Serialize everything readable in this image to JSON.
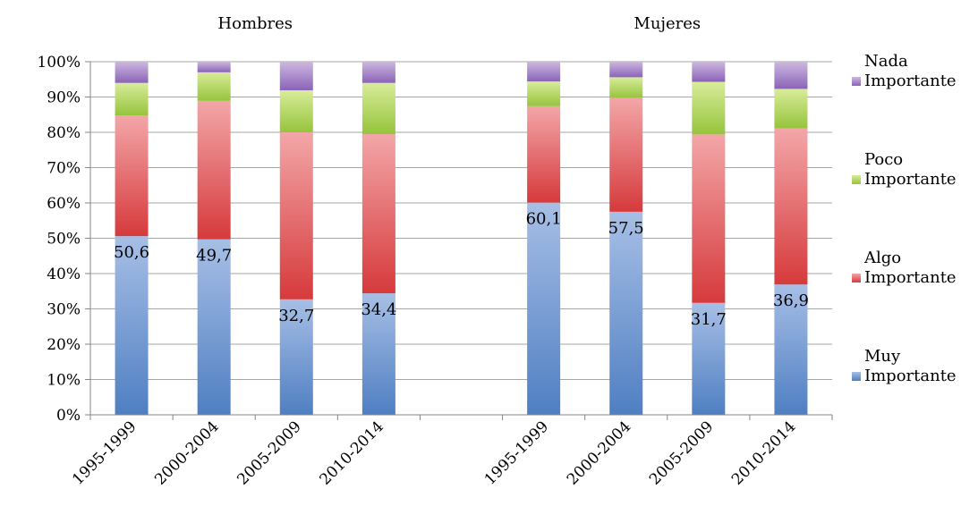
{
  "chart_data": {
    "type": "bar",
    "stacked": true,
    "percent_axis": true,
    "groups": [
      "Hombres",
      "Mujeres"
    ],
    "categories": [
      "1995-1999",
      "2000-2004",
      "2005-2009",
      "2010-2014",
      "",
      "1995-1999",
      "2000-2004",
      "2005-2009",
      "2010-2014"
    ],
    "category_group": [
      "Hombres",
      "Hombres",
      "Hombres",
      "Hombres",
      "",
      "Mujeres",
      "Mujeres",
      "Mujeres",
      "Mujeres"
    ],
    "series": [
      {
        "name": "Muy Importante",
        "legend_lines": [
          "Muy",
          "Importante"
        ],
        "color_top": "#a7bfe6",
        "color_bottom": "#4f7fc2",
        "values": [
          50.6,
          49.7,
          32.7,
          34.4,
          null,
          60.1,
          57.5,
          31.7,
          36.9
        ]
      },
      {
        "name": "Algo Importante",
        "legend_lines": [
          "Algo",
          "Importante"
        ],
        "color_top": "#f3a6a8",
        "color_bottom": "#d63a3c",
        "values": [
          34.2,
          39.2,
          47.3,
          45.1,
          null,
          27.3,
          32.2,
          47.7,
          44.2
        ]
      },
      {
        "name": "Poco Importante",
        "legend_lines": [
          "Poco",
          "Importante"
        ],
        "color_top": "#d8ec9a",
        "color_bottom": "#96c43c",
        "values": [
          9.2,
          8.1,
          11.9,
          14.5,
          null,
          7.0,
          5.9,
          14.9,
          11.2
        ]
      },
      {
        "name": "Nada Importante",
        "legend_lines": [
          "Nada",
          "Importante"
        ],
        "color_top": "#cdb8e0",
        "color_bottom": "#8a63b8",
        "values": [
          6.0,
          3.0,
          8.1,
          6.0,
          null,
          5.6,
          4.4,
          5.7,
          7.7
        ]
      }
    ],
    "data_labels": [
      "50,6",
      "49,7",
      "32,7",
      "34,4",
      "",
      "60,1",
      "57,5",
      "31,7",
      "36,9"
    ],
    "y_ticks": [
      "0%",
      "10%",
      "20%",
      "30%",
      "40%",
      "50%",
      "60%",
      "70%",
      "80%",
      "90%",
      "100%"
    ],
    "ylim": [
      0,
      100
    ],
    "grid": true,
    "legend_position": "right"
  }
}
